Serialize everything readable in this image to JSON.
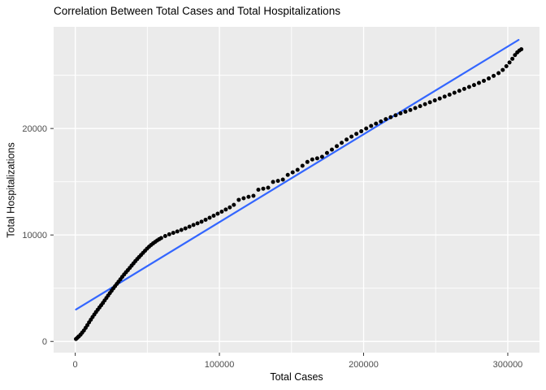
{
  "chart_data": {
    "type": "scatter",
    "title": "Correlation Between Total Cases and Total Hospitalizations",
    "xlabel": "Total Cases",
    "ylabel": "Total Hospitalizations",
    "x_ticks": [
      0,
      100000,
      200000,
      300000
    ],
    "x_tick_labels": [
      "0",
      "100000",
      "200000",
      "300000"
    ],
    "y_ticks": [
      0,
      10000,
      20000
    ],
    "y_tick_labels": [
      "0",
      "10000",
      "20000"
    ],
    "x_minor_ticks": [
      50000,
      150000,
      250000
    ],
    "y_minor_ticks": [
      5000,
      15000,
      25000
    ],
    "xlim": [
      -15000,
      322000
    ],
    "ylim": [
      -1050,
      29550
    ],
    "grid": "major+minor",
    "legend": "none",
    "colors": {
      "panel_background": "#EBEBEB",
      "grid": "#FFFFFF",
      "points": "#000000",
      "trend_line": "#3366FF",
      "tick_labels": "#4D4D4D",
      "tick_marks": "#333333",
      "titles": "#000000"
    },
    "series": [
      {
        "name": "observations",
        "type": "points",
        "points": [
          [
            500,
            230
          ],
          [
            1500,
            350
          ],
          [
            2500,
            480
          ],
          [
            3700,
            640
          ],
          [
            4800,
            830
          ],
          [
            6000,
            1030
          ],
          [
            7200,
            1280
          ],
          [
            8400,
            1530
          ],
          [
            9600,
            1790
          ],
          [
            10800,
            2040
          ],
          [
            12000,
            2290
          ],
          [
            13200,
            2530
          ],
          [
            14400,
            2760
          ],
          [
            15600,
            2980
          ],
          [
            16800,
            3190
          ],
          [
            18000,
            3400
          ],
          [
            19200,
            3620
          ],
          [
            20400,
            3850
          ],
          [
            21600,
            4080
          ],
          [
            22800,
            4310
          ],
          [
            24000,
            4540
          ],
          [
            25200,
            4760
          ],
          [
            26400,
            4980
          ],
          [
            27600,
            5190
          ],
          [
            28800,
            5400
          ],
          [
            30000,
            5610
          ],
          [
            31300,
            5840
          ],
          [
            32600,
            6070
          ],
          [
            33900,
            6290
          ],
          [
            35200,
            6500
          ],
          [
            36500,
            6700
          ],
          [
            37800,
            6910
          ],
          [
            39100,
            7120
          ],
          [
            40400,
            7330
          ],
          [
            41700,
            7540
          ],
          [
            43000,
            7740
          ],
          [
            44300,
            7930
          ],
          [
            45600,
            8120
          ],
          [
            47000,
            8320
          ],
          [
            48400,
            8520
          ],
          [
            49800,
            8720
          ],
          [
            51200,
            8900
          ],
          [
            52600,
            9060
          ],
          [
            54000,
            9210
          ],
          [
            55400,
            9350
          ],
          [
            56800,
            9480
          ],
          [
            58200,
            9600
          ],
          [
            59600,
            9710
          ],
          [
            62400,
            9900
          ],
          [
            65200,
            10060
          ],
          [
            68000,
            10200
          ],
          [
            70800,
            10330
          ],
          [
            73600,
            10470
          ],
          [
            76400,
            10620
          ],
          [
            79200,
            10780
          ],
          [
            82000,
            10940
          ],
          [
            84800,
            11090
          ],
          [
            87600,
            11250
          ],
          [
            90400,
            11430
          ],
          [
            93200,
            11620
          ],
          [
            96000,
            11810
          ],
          [
            98800,
            12000
          ],
          [
            101600,
            12190
          ],
          [
            104400,
            12390
          ],
          [
            107200,
            12590
          ],
          [
            110000,
            12830
          ],
          [
            113400,
            13300
          ],
          [
            116800,
            13450
          ],
          [
            120200,
            13580
          ],
          [
            123600,
            13680
          ],
          [
            127000,
            14250
          ],
          [
            130400,
            14350
          ],
          [
            133800,
            14440
          ],
          [
            137200,
            14980
          ],
          [
            140600,
            15080
          ],
          [
            144000,
            15200
          ],
          [
            147400,
            15640
          ],
          [
            150800,
            15880
          ],
          [
            154200,
            16120
          ],
          [
            157600,
            16500
          ],
          [
            161000,
            16860
          ],
          [
            164400,
            17090
          ],
          [
            167800,
            17200
          ],
          [
            171200,
            17340
          ],
          [
            174600,
            17700
          ],
          [
            178000,
            18020
          ],
          [
            181400,
            18340
          ],
          [
            184800,
            18660
          ],
          [
            188200,
            18960
          ],
          [
            191600,
            19240
          ],
          [
            195000,
            19500
          ],
          [
            198400,
            19740
          ],
          [
            201800,
            20000
          ],
          [
            205200,
            20240
          ],
          [
            208600,
            20460
          ],
          [
            212000,
            20660
          ],
          [
            215400,
            20880
          ],
          [
            218800,
            21060
          ],
          [
            222200,
            21240
          ],
          [
            225600,
            21420
          ],
          [
            229000,
            21580
          ],
          [
            232400,
            21740
          ],
          [
            235800,
            21920
          ],
          [
            239200,
            22100
          ],
          [
            242600,
            22280
          ],
          [
            246000,
            22460
          ],
          [
            249400,
            22640
          ],
          [
            252800,
            22820
          ],
          [
            256200,
            23000
          ],
          [
            259600,
            23180
          ],
          [
            263000,
            23360
          ],
          [
            266400,
            23540
          ],
          [
            269800,
            23720
          ],
          [
            273200,
            23900
          ],
          [
            276600,
            24080
          ],
          [
            280000,
            24280
          ],
          [
            283400,
            24480
          ],
          [
            286800,
            24700
          ],
          [
            290200,
            24940
          ],
          [
            293600,
            25200
          ],
          [
            296500,
            25500
          ],
          [
            299000,
            25850
          ],
          [
            301200,
            26200
          ],
          [
            303200,
            26550
          ],
          [
            305000,
            26900
          ],
          [
            306600,
            27150
          ],
          [
            308000,
            27320
          ],
          [
            309400,
            27440
          ]
        ]
      },
      {
        "name": "linear-fit",
        "type": "line",
        "points": [
          [
            500,
            3000
          ],
          [
            307500,
            28320
          ]
        ]
      }
    ]
  }
}
